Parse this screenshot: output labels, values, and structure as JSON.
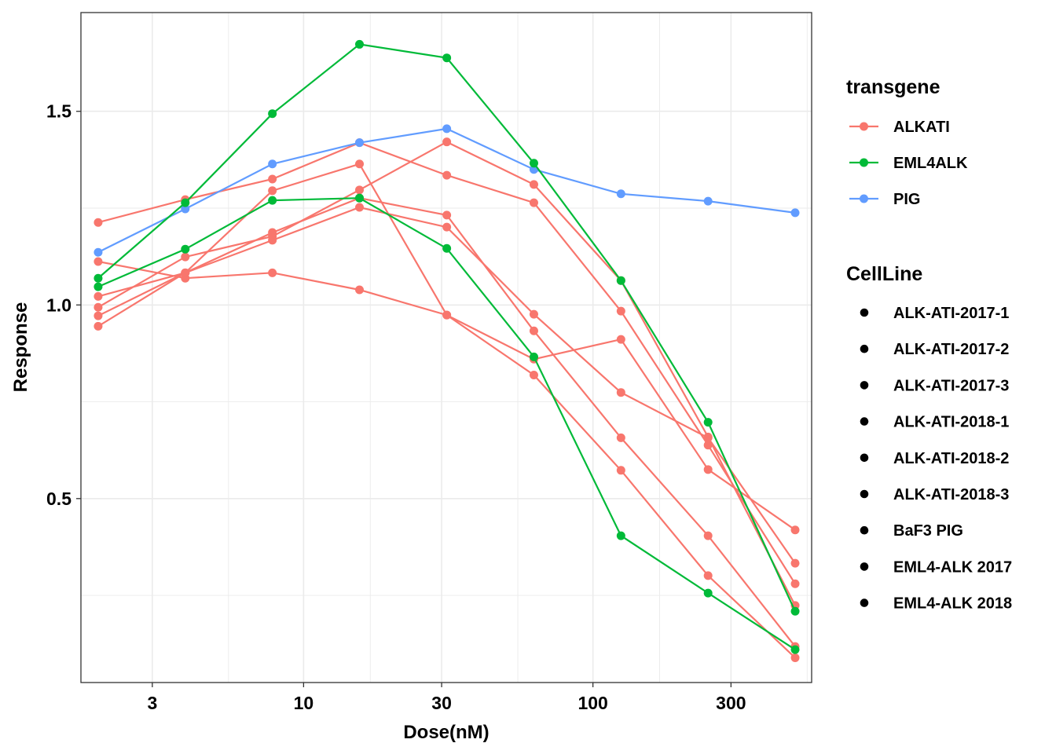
{
  "chart_data": {
    "type": "line",
    "title": "",
    "xlabel": "Dose(nM)",
    "ylabel": "Response",
    "x_scale": "log10",
    "xlim": [
      1.7,
      570
    ],
    "ylim": [
      0.025,
      1.755
    ],
    "x_ticks": [
      3,
      10,
      30,
      100,
      300
    ],
    "x_tick_labels": [
      "3",
      "10",
      "30",
      "100",
      "300"
    ],
    "x_minor_ticks": [
      1.7,
      5.5,
      17,
      55,
      170,
      550
    ],
    "y_ticks": [
      0.5,
      1.0,
      1.5
    ],
    "y_tick_labels": [
      "0.5",
      "1.0",
      "1.5"
    ],
    "y_minor_ticks": [
      0.25,
      0.75,
      1.25
    ],
    "grid": true,
    "x": [
      1.95,
      3.9,
      7.8,
      15.6,
      31.25,
      62.5,
      125,
      250,
      500
    ],
    "series": [
      {
        "name": "ALK-ATI-2017-1",
        "transgene": "ALKATI",
        "values": [
          1.213,
          1.272,
          1.325,
          1.419,
          1.335,
          1.264,
          0.984,
          0.638,
          0.28
        ]
      },
      {
        "name": "ALK-ATI-2017-2",
        "transgene": "ALKATI",
        "values": [
          0.945,
          1.083,
          1.295,
          1.364,
          0.974,
          0.819,
          0.573,
          0.301,
          0.089
        ]
      },
      {
        "name": "ALK-ATI-2017-3",
        "transgene": "ALKATI",
        "values": [
          0.994,
          1.124,
          1.177,
          1.297,
          1.421,
          1.311,
          1.063,
          0.659,
          0.224
        ]
      },
      {
        "name": "ALK-ATI-2018-1",
        "transgene": "ALKATI",
        "values": [
          1.112,
          1.069,
          1.083,
          1.039,
          0.974,
          0.86,
          0.911,
          0.575,
          0.419
        ]
      },
      {
        "name": "ALK-ATI-2018-2",
        "transgene": "ALKATI",
        "values": [
          1.022,
          1.083,
          1.187,
          1.276,
          1.232,
          0.933,
          0.657,
          0.404,
          0.118
        ]
      },
      {
        "name": "ALK-ATI-2018-3",
        "transgene": "ALKATI",
        "values": [
          0.972,
          1.083,
          1.167,
          1.252,
          1.201,
          0.976,
          0.774,
          0.657,
          0.333
        ]
      },
      {
        "name": "BaF3 PIG",
        "transgene": "PIG",
        "values": [
          1.136,
          1.248,
          1.364,
          1.419,
          1.455,
          1.35,
          1.287,
          1.268,
          1.238
        ]
      },
      {
        "name": "EML4-ALK 2017",
        "transgene": "EML4ALK",
        "values": [
          1.069,
          1.264,
          1.494,
          1.673,
          1.638,
          1.366,
          1.063,
          0.697,
          0.209
        ]
      },
      {
        "name": "EML4-ALK 2018",
        "transgene": "EML4ALK",
        "values": [
          1.047,
          1.144,
          1.27,
          1.276,
          1.146,
          0.866,
          0.404,
          0.256,
          0.11
        ]
      }
    ],
    "legend": {
      "placement": "right",
      "color_title": "transgene",
      "color_entries": [
        {
          "label": "ALKATI",
          "color": "#F8766D"
        },
        {
          "label": "EML4ALK",
          "color": "#00BA38"
        },
        {
          "label": "PIG",
          "color": "#619CFF"
        }
      ],
      "shape_title": "CellLine",
      "shape_entries": [
        "ALK-ATI-2017-1",
        "ALK-ATI-2017-2",
        "ALK-ATI-2017-3",
        "ALK-ATI-2018-1",
        "ALK-ATI-2018-2",
        "ALK-ATI-2018-3",
        "BaF3 PIG",
        "EML4-ALK 2017",
        "EML4-ALK 2018"
      ]
    },
    "colors": {
      "ALKATI": "#F8766D",
      "EML4ALK": "#00BA38",
      "PIG": "#619CFF"
    }
  }
}
